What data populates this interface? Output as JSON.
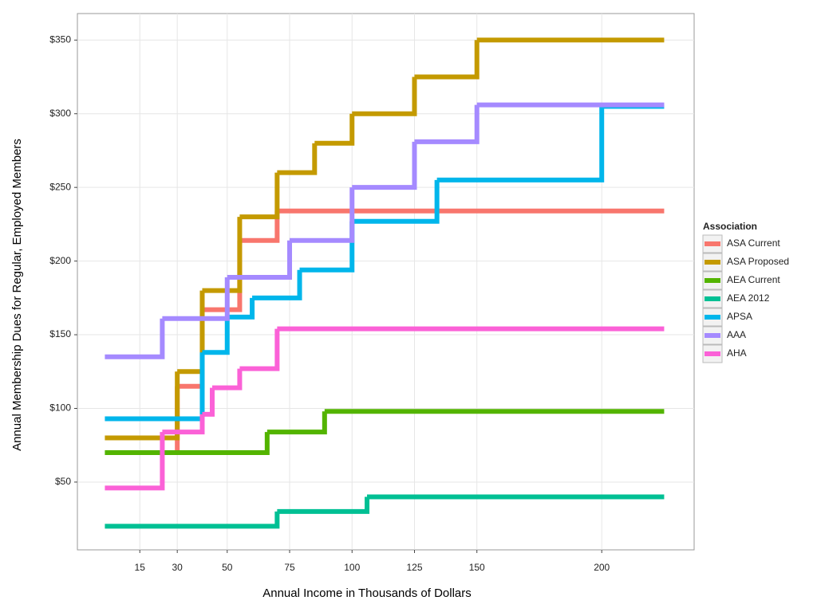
{
  "chart_data": {
    "type": "step",
    "x_label": "Annual Income in Thousands of Dollars",
    "y_label": "Annual Membership Dues for Regular, Employed Members",
    "legend_title": "Association",
    "legend_position": "right",
    "grid": true,
    "xlim": [
      -10,
      237
    ],
    "ylim": [
      4,
      368
    ],
    "xticks": [
      15,
      30,
      50,
      75,
      100,
      125,
      150,
      200
    ],
    "yticks": [
      {
        "value": 50,
        "label": "$50"
      },
      {
        "value": 100,
        "label": "$100"
      },
      {
        "value": 150,
        "label": "$150"
      },
      {
        "value": 200,
        "label": "$200"
      },
      {
        "value": 250,
        "label": "$250"
      },
      {
        "value": 300,
        "label": "$300"
      },
      {
        "value": 350,
        "label": "$350"
      }
    ],
    "series": [
      {
        "name": "ASA Current",
        "color": "#F8766D",
        "x": [
          20,
          30,
          40,
          55,
          70,
          225
        ],
        "values": [
          70,
          115,
          167,
          214,
          234,
          234
        ]
      },
      {
        "name": "ASA Proposed",
        "color": "#C49A00",
        "x": [
          1,
          30,
          40,
          55,
          70,
          85,
          100,
          125,
          150,
          225
        ],
        "values": [
          80,
          125,
          180,
          230,
          260,
          280,
          300,
          325,
          350,
          350
        ]
      },
      {
        "name": "AEA Current",
        "color": "#53B400",
        "x": [
          1,
          66,
          89,
          225
        ],
        "values": [
          70,
          84,
          98,
          98
        ]
      },
      {
        "name": "AEA 2012",
        "color": "#00C094",
        "x": [
          1,
          70,
          106,
          225
        ],
        "values": [
          20,
          30,
          40,
          40
        ]
      },
      {
        "name": "APSA",
        "color": "#00B6EB",
        "x": [
          1,
          40,
          50,
          60,
          79,
          100,
          134,
          200,
          225
        ],
        "values": [
          93,
          138,
          162,
          175,
          194,
          227,
          255,
          305,
          305
        ]
      },
      {
        "name": "AAA",
        "color": "#A58AFF",
        "x": [
          1,
          24,
          50,
          75,
          100,
          125,
          150,
          225
        ],
        "values": [
          135,
          161,
          189,
          214,
          250,
          281,
          306,
          306
        ]
      },
      {
        "name": "AHA",
        "color": "#FB61D7",
        "x": [
          1,
          24,
          40,
          44,
          55,
          70,
          225
        ],
        "values": [
          46,
          84,
          96,
          114,
          127,
          154,
          154
        ]
      }
    ]
  }
}
